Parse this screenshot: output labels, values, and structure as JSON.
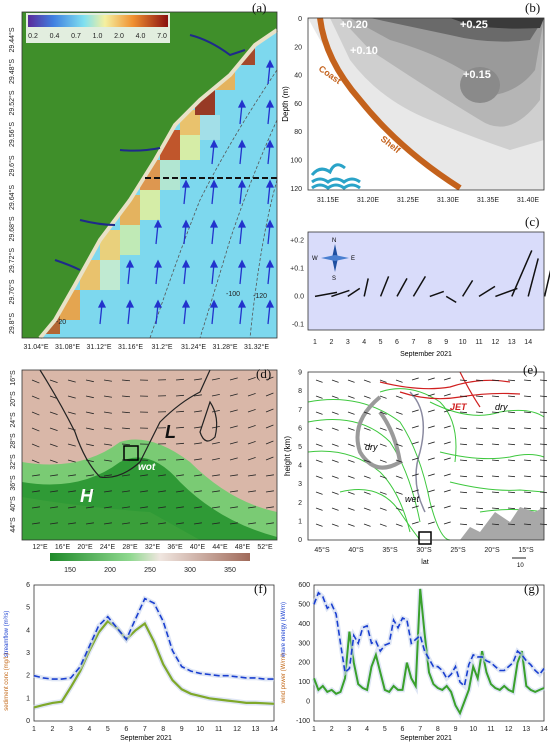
{
  "panels": {
    "a": {
      "label": "(a)",
      "colorbar_ticks": [
        "0.2",
        "0.4",
        "0.7",
        "1.0",
        "2.0",
        "4.0",
        "7.0"
      ],
      "lon_ticks": [
        "31.04°E",
        "31.08°E",
        "31.12°E",
        "31.16°E",
        "31.2°E",
        "31.24°E",
        "31.28°E",
        "31.32°E"
      ],
      "lat_ticks": [
        "29.44°S",
        "29.48°S",
        "29.52°S",
        "29.56°S",
        "29.6°S",
        "29.64°S",
        "29.68°S",
        "29.72°S",
        "29.76°S",
        "29.8°S"
      ],
      "contour_labels": [
        "-100",
        "-120",
        "-20"
      ]
    },
    "b": {
      "label": "(b)",
      "ylabel": "Depth (m)",
      "y_ticks": [
        "0",
        "20",
        "40",
        "60",
        "80",
        "100",
        "120"
      ],
      "x_ticks": [
        "31.15E",
        "31.20E",
        "31.25E",
        "31.30E",
        "31.35E",
        "31.40E"
      ],
      "values": [
        "+0.20",
        "+0.25",
        "+0.10",
        "+0.15"
      ],
      "coast_label": "Coast",
      "shelf_label": "Shelf"
    },
    "c": {
      "label": "(c)",
      "y_ticks": [
        "+0.2",
        "+0.1",
        "0.0",
        "-0.1"
      ],
      "x_ticks": [
        "1",
        "2",
        "3",
        "4",
        "5",
        "6",
        "7",
        "8",
        "9",
        "10",
        "11",
        "12",
        "13",
        "14"
      ],
      "xlabel": "September 2021",
      "compass": {
        "n": "N",
        "s": "S",
        "e": "E",
        "w": "W"
      }
    },
    "d": {
      "label": "(d)",
      "low_label": "L",
      "high_label": "H",
      "wot_label": "wot",
      "lon_ticks": [
        "12°E",
        "16°E",
        "20°E",
        "24°E",
        "28°E",
        "32°E",
        "36°E",
        "40°E",
        "44°E",
        "48°E",
        "52°E"
      ],
      "lat_ticks": [
        "16°S",
        "20°S",
        "24°S",
        "28°S",
        "32°S",
        "36°S",
        "40°S",
        "44°S"
      ],
      "colorbar_ticks": [
        "150",
        "200",
        "250",
        "300",
        "350"
      ]
    },
    "e": {
      "label": "(e)",
      "ylabel": "height (km)",
      "xlabel": "lat",
      "y_ticks": [
        "0",
        "1",
        "2",
        "3",
        "4",
        "5",
        "6",
        "7",
        "8",
        "9"
      ],
      "x_ticks": [
        "45°S",
        "40°S",
        "35°S",
        "30°S",
        "25°S",
        "20°S",
        "15°S"
      ],
      "jet_label": "JET",
      "dry_label": "dry",
      "wet_label": "wet",
      "ref_vector": "10"
    },
    "f": {
      "label": "(f)",
      "ylabel_left": "sediment conc (mg/L)",
      "ylabel_right": "streamflow (m³/s)",
      "y_ticks": [
        "0",
        "1",
        "2",
        "3",
        "4",
        "5",
        "6"
      ],
      "xlabel": "September 2021"
    },
    "g": {
      "label": "(g)",
      "ylabel_left": "wind power (W/m²)",
      "ylabel_right": "wave energy (kW/m)",
      "y_ticks": [
        "-100",
        "0",
        "100",
        "200",
        "300",
        "400",
        "500",
        "600"
      ],
      "xlabel": "September 2021"
    }
  },
  "chart_data": [
    {
      "type": "line",
      "panel": "f",
      "x": [
        1,
        1.5,
        2,
        2.5,
        3,
        3.5,
        4,
        4.5,
        5,
        5.5,
        6,
        6.5,
        7,
        7.5,
        8,
        8.5,
        9,
        9.5,
        10,
        10.5,
        11,
        11.5,
        12,
        12.5,
        13,
        13.5,
        14
      ],
      "series": [
        {
          "values": [
            0.6,
            0.7,
            0.8,
            0.85,
            1.5,
            2.2,
            3.1,
            3.9,
            4.4,
            4.1,
            3.6,
            4.0,
            4.3,
            3.5,
            2.5,
            1.8,
            1.4,
            1.2,
            1.1,
            1.0,
            0.95,
            0.9,
            0.85,
            0.8,
            0.8,
            0.78,
            0.76
          ]
        },
        {
          "values": [
            2.0,
            1.9,
            1.85,
            1.85,
            1.9,
            2.4,
            3.3,
            4.2,
            4.6,
            4.1,
            3.6,
            4.5,
            5.4,
            5.2,
            4.4,
            3.1,
            2.4,
            2.2,
            2.1,
            2.05,
            2.0,
            2.0,
            1.95,
            1.9,
            1.9,
            1.85,
            1.85
          ]
        }
      ],
      "xlim": [
        1,
        14
      ],
      "ylim": [
        0,
        6
      ]
    },
    {
      "type": "line",
      "panel": "g",
      "x": [
        1,
        1.25,
        1.5,
        1.75,
        2,
        2.25,
        2.5,
        2.75,
        3,
        3.25,
        3.5,
        3.75,
        4,
        4.25,
        4.5,
        4.75,
        5,
        5.25,
        5.5,
        5.75,
        6,
        6.25,
        6.5,
        6.75,
        7,
        7.25,
        7.5,
        7.75,
        8,
        8.25,
        8.5,
        8.75,
        9,
        9.25,
        9.5,
        9.75,
        10,
        10.25,
        10.5,
        10.75,
        11,
        11.25,
        11.5,
        11.75,
        12,
        12.25,
        12.5,
        12.75,
        13,
        13.25,
        13.5,
        13.75,
        14
      ],
      "series": [
        {
          "values": [
            120,
            60,
            80,
            50,
            60,
            40,
            50,
            120,
            360,
            200,
            90,
            70,
            60,
            180,
            240,
            150,
            60,
            50,
            80,
            60,
            60,
            200,
            120,
            80,
            580,
            350,
            150,
            90,
            70,
            60,
            80,
            50,
            -20,
            -60,
            0,
            60,
            180,
            120,
            260,
            150,
            90,
            70,
            60,
            80,
            60,
            50,
            200,
            260,
            80,
            60,
            50,
            60,
            70
          ]
        },
        {
          "values": [
            500,
            560,
            540,
            480,
            500,
            450,
            300,
            150,
            170,
            340,
            300,
            380,
            390,
            300,
            310,
            260,
            290,
            300,
            420,
            380,
            430,
            420,
            300,
            320,
            340,
            260,
            220,
            180,
            180,
            160,
            120,
            140,
            180,
            100,
            80,
            190,
            240,
            230,
            230,
            210,
            200,
            180,
            160,
            160,
            180,
            200,
            260,
            240,
            210,
            190,
            160,
            140,
            170
          ]
        }
      ],
      "xlim": [
        1,
        14
      ],
      "ylim": [
        -100,
        600
      ]
    },
    {
      "type": "line",
      "panel": "c",
      "x": [
        1,
        2,
        3,
        4,
        5,
        6,
        7,
        8,
        9,
        10,
        11,
        12,
        13,
        14
      ],
      "series": [
        {
          "values": [
            0.02,
            0.03,
            0.05,
            0.08,
            0.1,
            0.09,
            0.06,
            0.05,
            0.04,
            0.03,
            0.08,
            0.12,
            0.15,
            0.1
          ]
        }
      ],
      "ylim": [
        -0.1,
        0.2
      ]
    }
  ],
  "colors": {
    "land": "#3f8f2a",
    "sea": "#79d8ef",
    "sediment": "#e08a1c",
    "streamflow": "#1a3fd0",
    "wind": "#3aa02c",
    "panel_c_bg": "#d9dcfa",
    "coast": "#c4621c"
  }
}
